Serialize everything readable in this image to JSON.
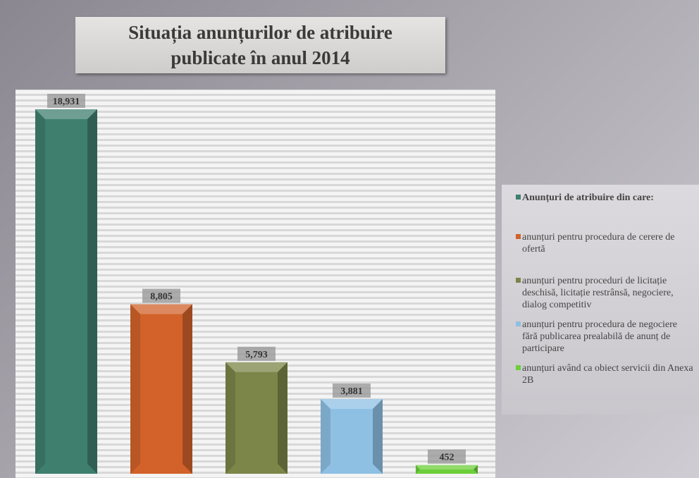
{
  "chart_data": {
    "type": "bar",
    "title": "Situația anunțurilor de atribuire publicate în anul 2014",
    "categories": [
      "Anunțuri de atribuire din care:",
      "anunțuri pentru procedura de cerere de ofertă",
      "anunțuri pentru proceduri de licitație deschisă, licitație restrânsă, negociere, dialog competitiv",
      "anunțuri pentru procedura de negociere fără publicarea prealabilă de anunț de participare",
      "anunțuri având ca obiect servicii din Anexa 2B"
    ],
    "values": [
      18931,
      8805,
      5793,
      3881,
      452
    ],
    "value_labels": [
      "18,931",
      "8,805",
      "5,793",
      "3,881",
      "452"
    ],
    "colors": [
      "#3f7f6e",
      "#d2622a",
      "#7b8648",
      "#8ec0e4",
      "#6ccf3a"
    ]
  }
}
